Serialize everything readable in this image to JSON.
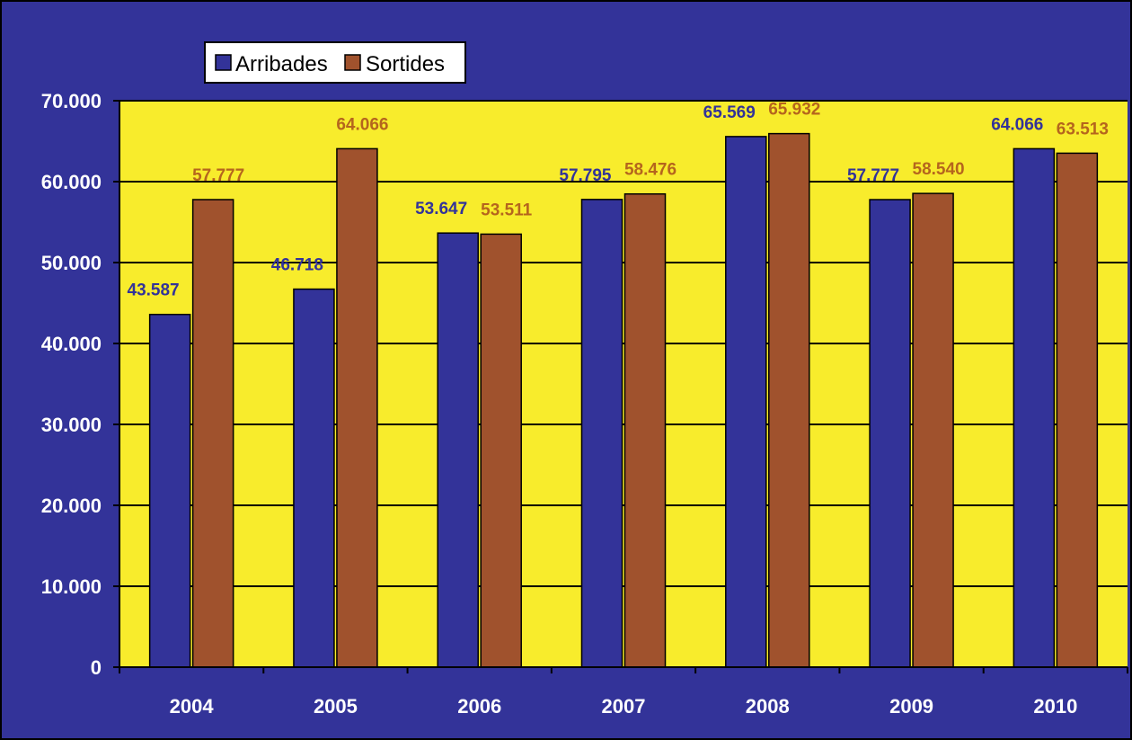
{
  "chart_data": {
    "type": "bar",
    "categories": [
      "2004",
      "2005",
      "2006",
      "2007",
      "2008",
      "2009",
      "2010"
    ],
    "series": [
      {
        "name": "Arribades",
        "values": [
          43587,
          46718,
          53647,
          57795,
          65569,
          57777,
          64066
        ],
        "labels": [
          "43.587",
          "46.718",
          "53.647",
          "57.795",
          "65.569",
          "57.777",
          "64.066"
        ],
        "color": "#333399",
        "label_color": "#333399"
      },
      {
        "name": "Sortides",
        "values": [
          57777,
          64066,
          53511,
          58476,
          65932,
          58540,
          63513
        ],
        "labels": [
          "57.777",
          "64.066",
          "53.511",
          "58.476",
          "65.932",
          "58.540",
          "63.513"
        ],
        "color": "#A0522D",
        "label_color": "#B5651D"
      }
    ],
    "ylim": [
      0,
      70000
    ],
    "yticks": [
      0,
      10000,
      20000,
      30000,
      40000,
      50000,
      60000,
      70000
    ],
    "ytick_labels": [
      "0",
      "10.000",
      "20.000",
      "30.000",
      "40.000",
      "50.000",
      "60.000",
      "70.000"
    ],
    "grid": true,
    "legend_position": "top-left",
    "colors": {
      "outer_background": "#333399",
      "plot_background": "#F8EC2C",
      "grid": "#000000"
    }
  }
}
